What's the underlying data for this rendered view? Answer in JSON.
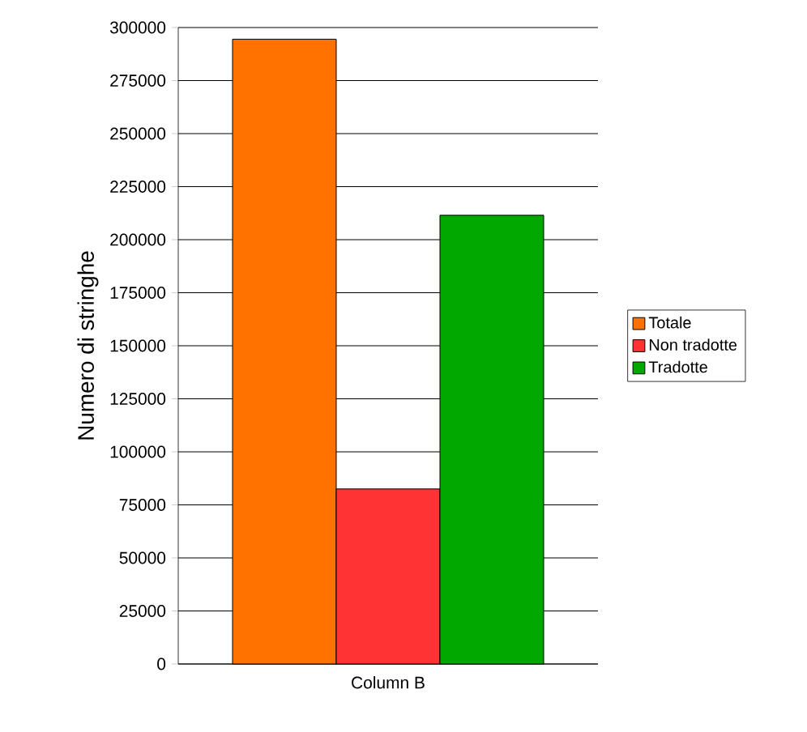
{
  "chart_data": {
    "type": "bar",
    "ylabel": "Numero di stringhe",
    "categories": [
      "Column B"
    ],
    "series": [
      {
        "name": "Totale",
        "color": "#ff7200",
        "values": [
          294500
        ]
      },
      {
        "name": "Non tradotte",
        "color": "#ff3333",
        "values": [
          82500
        ]
      },
      {
        "name": "Tradotte",
        "color": "#00a800",
        "values": [
          211500
        ]
      }
    ],
    "ylim": [
      0,
      300000
    ],
    "yticks": [
      0,
      25000,
      50000,
      75000,
      100000,
      125000,
      150000,
      175000,
      200000,
      225000,
      250000,
      275000,
      300000
    ],
    "grid": "y",
    "legend": "right"
  }
}
